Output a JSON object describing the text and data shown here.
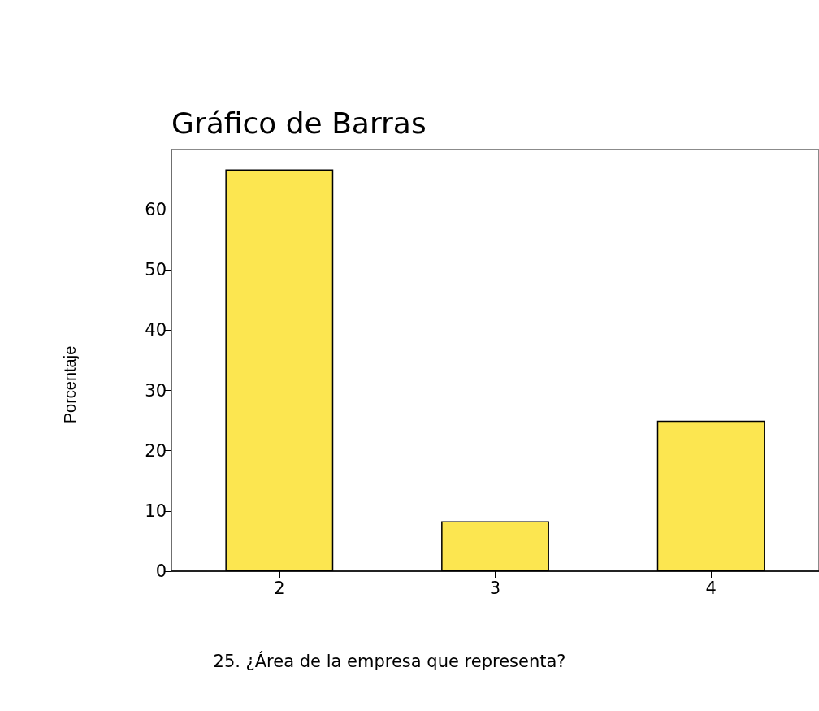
{
  "chart_data": {
    "type": "bar",
    "title": "Gráfico de Barras",
    "xlabel": "25. ¿Área de la empresa que representa?",
    "ylabel": "Porcentaje",
    "categories": [
      "2",
      "3",
      "4"
    ],
    "values": [
      66.7,
      8.3,
      25
    ],
    "color": "#fce650",
    "ylim": [
      0,
      70
    ],
    "yticks": [
      0,
      10,
      20,
      30,
      40,
      50,
      60
    ],
    "grid": false
  }
}
